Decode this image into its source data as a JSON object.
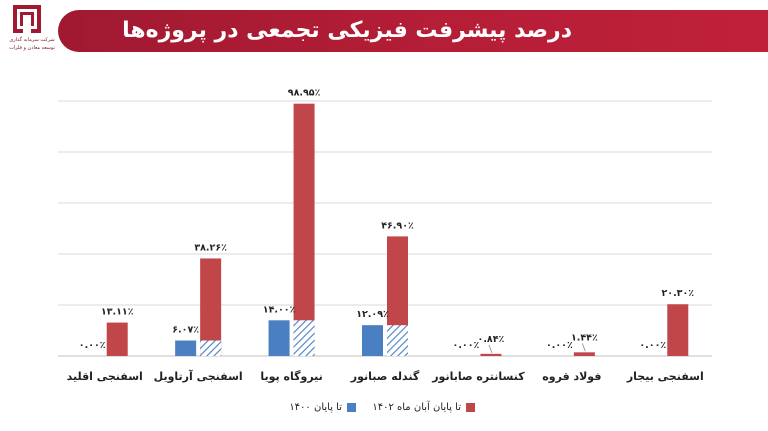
{
  "header": {
    "title": "درصد پیشرفت فیزیکی تجمعی در پروژه‌ها",
    "logo_caption_1": "شرکت سرمایه گذاری",
    "logo_caption_2": "توسعه معادن و فلزات"
  },
  "colors": {
    "banner": "#b51e36",
    "series_1400": "#4a7fc1",
    "series_1402": "#c0464a",
    "gridline": "#d9d9d9"
  },
  "chart_data": {
    "type": "bar",
    "categories": [
      "اسفنجی بیجار",
      "فولاد قروه",
      "کنسانتره صابانور",
      "گندله صبانور",
      "نیروگاه پویا",
      "اسفنجی آرتاویل",
      "اسفنجی اقلید"
    ],
    "series": [
      {
        "name": "تا پایان ۱۴۰۰",
        "values": [
          0.0,
          0.0,
          0.0,
          12.09,
          14.0,
          6.07,
          0.0
        ],
        "labels": [
          "۰.۰۰٪",
          "۰.۰۰٪",
          "۰.۰۰٪",
          "۱۲.۰۹٪",
          "۱۴.۰۰٪",
          "۶.۰۷٪",
          "۰.۰۰٪"
        ]
      },
      {
        "name": "تا پایان آبان ماه ۱۴۰۲",
        "values": [
          20.3,
          1.44,
          0.84,
          46.9,
          98.95,
          38.26,
          13.11
        ],
        "labels": [
          "۲۰.۳۰٪",
          "۱.۴۴٪",
          "۰.۸۴٪",
          "۴۶.۹۰٪",
          "۹۸.۹۵٪",
          "۳۸.۲۶٪",
          "۱۳.۱۱٪"
        ]
      }
    ],
    "ylim": [
      0,
      100
    ],
    "grid": true,
    "legend_position": "bottom"
  }
}
